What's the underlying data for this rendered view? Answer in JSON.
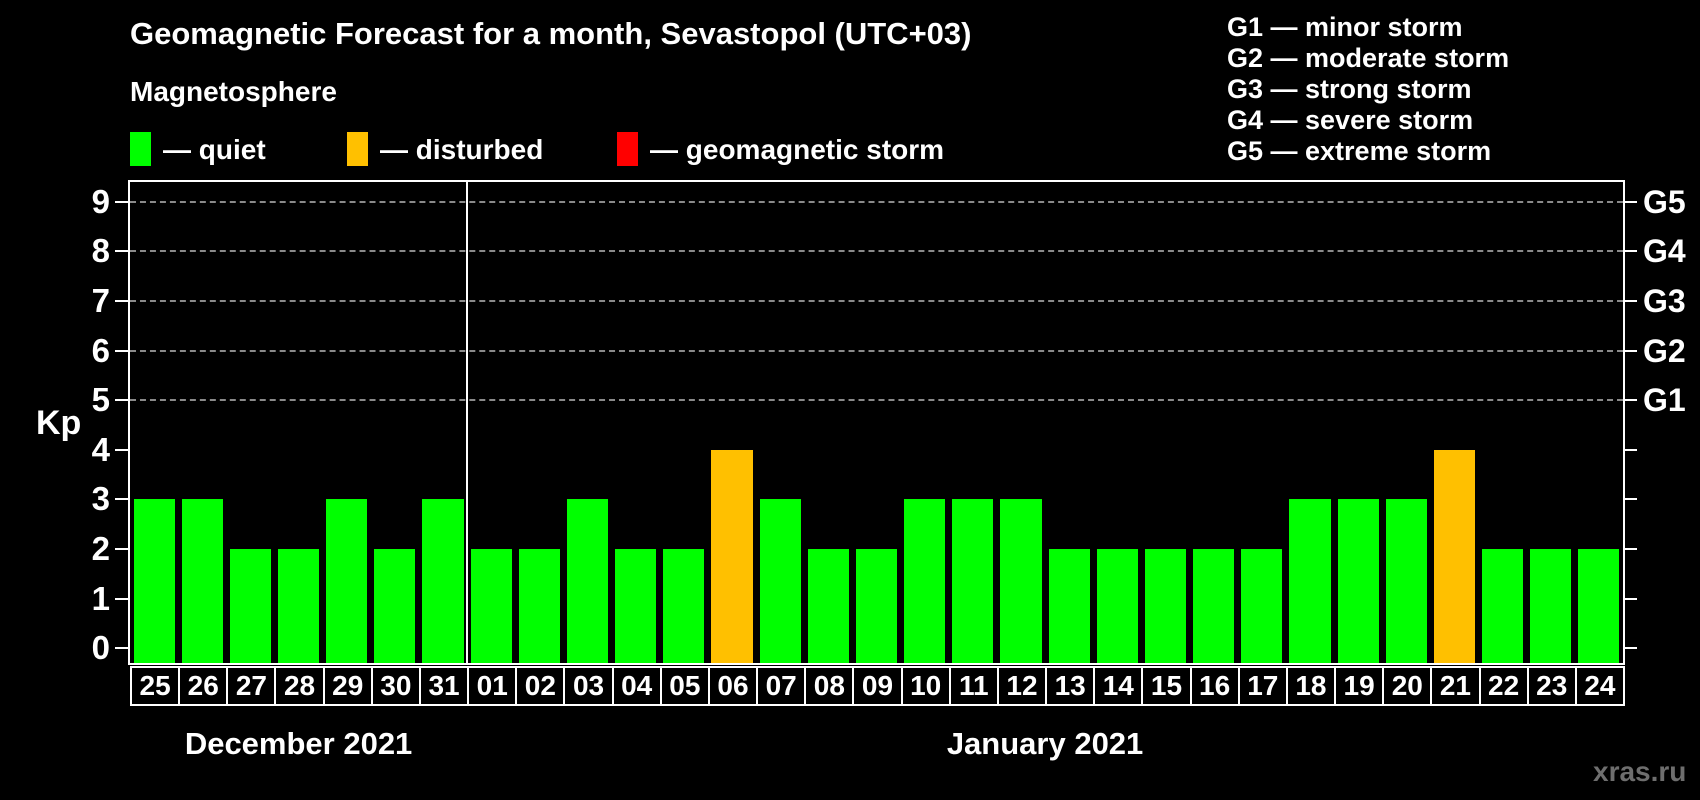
{
  "title": "Geomagnetic Forecast for a month, Sevastopol (UTC+03)",
  "legend": {
    "heading": "Magnetosphere",
    "items": [
      {
        "key": "quiet",
        "label": "— quiet",
        "color": "#00ff00"
      },
      {
        "key": "disturbed",
        "label": "— disturbed",
        "color": "#ffc000"
      },
      {
        "key": "storm",
        "label": "— geomagnetic storm",
        "color": "#ff0000"
      }
    ]
  },
  "g_scale_legend": [
    "G1 — minor storm",
    "G2 — moderate storm",
    "G3 — strong storm",
    "G4 — severe storm",
    "G5 — extreme storm"
  ],
  "watermark": "xras.ru",
  "chart_data": {
    "type": "bar",
    "title": "Geomagnetic Forecast for a month, Sevastopol (UTC+03)",
    "ylabel": "Kp",
    "ylim": [
      0,
      9
    ],
    "yticks": [
      0,
      1,
      2,
      3,
      4,
      5,
      6,
      7,
      8,
      9
    ],
    "gridlines_at": [
      5,
      6,
      7,
      8,
      9
    ],
    "right_axis_labels": [
      {
        "kp": 5,
        "label": "G1"
      },
      {
        "kp": 6,
        "label": "G2"
      },
      {
        "kp": 7,
        "label": "G3"
      },
      {
        "kp": 8,
        "label": "G4"
      },
      {
        "kp": 9,
        "label": "G5"
      }
    ],
    "status_colors": {
      "quiet": "#00ff00",
      "disturbed": "#ffc000",
      "storm": "#ff0000"
    },
    "months": [
      {
        "label": "December 2021",
        "days": [
          {
            "day": "25",
            "kp": 3,
            "status": "quiet"
          },
          {
            "day": "26",
            "kp": 3,
            "status": "quiet"
          },
          {
            "day": "27",
            "kp": 2,
            "status": "quiet"
          },
          {
            "day": "28",
            "kp": 2,
            "status": "quiet"
          },
          {
            "day": "29",
            "kp": 3,
            "status": "quiet"
          },
          {
            "day": "30",
            "kp": 2,
            "status": "quiet"
          },
          {
            "day": "31",
            "kp": 3,
            "status": "quiet"
          }
        ]
      },
      {
        "label": "January 2021",
        "days": [
          {
            "day": "01",
            "kp": 2,
            "status": "quiet"
          },
          {
            "day": "02",
            "kp": 2,
            "status": "quiet"
          },
          {
            "day": "03",
            "kp": 3,
            "status": "quiet"
          },
          {
            "day": "04",
            "kp": 2,
            "status": "quiet"
          },
          {
            "day": "05",
            "kp": 2,
            "status": "quiet"
          },
          {
            "day": "06",
            "kp": 4,
            "status": "disturbed"
          },
          {
            "day": "07",
            "kp": 3,
            "status": "quiet"
          },
          {
            "day": "08",
            "kp": 2,
            "status": "quiet"
          },
          {
            "day": "09",
            "kp": 2,
            "status": "quiet"
          },
          {
            "day": "10",
            "kp": 3,
            "status": "quiet"
          },
          {
            "day": "11",
            "kp": 3,
            "status": "quiet"
          },
          {
            "day": "12",
            "kp": 3,
            "status": "quiet"
          },
          {
            "day": "13",
            "kp": 2,
            "status": "quiet"
          },
          {
            "day": "14",
            "kp": 2,
            "status": "quiet"
          },
          {
            "day": "15",
            "kp": 2,
            "status": "quiet"
          },
          {
            "day": "16",
            "kp": 2,
            "status": "quiet"
          },
          {
            "day": "17",
            "kp": 2,
            "status": "quiet"
          },
          {
            "day": "18",
            "kp": 3,
            "status": "quiet"
          },
          {
            "day": "19",
            "kp": 3,
            "status": "quiet"
          },
          {
            "day": "20",
            "kp": 3,
            "status": "quiet"
          },
          {
            "day": "21",
            "kp": 4,
            "status": "disturbed"
          },
          {
            "day": "22",
            "kp": 2,
            "status": "quiet"
          },
          {
            "day": "23",
            "kp": 2,
            "status": "quiet"
          },
          {
            "day": "24",
            "kp": 2,
            "status": "quiet"
          }
        ]
      }
    ]
  }
}
